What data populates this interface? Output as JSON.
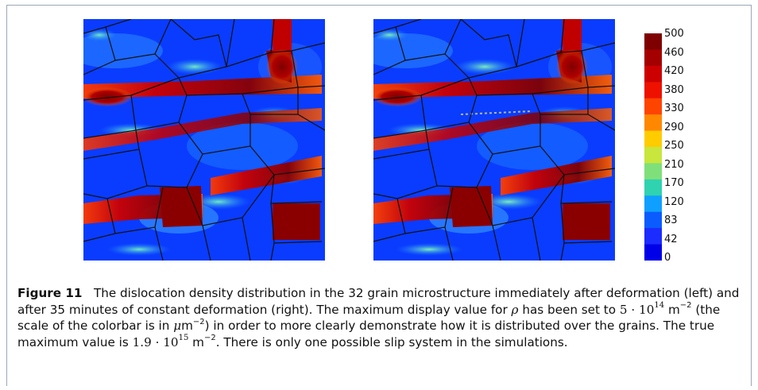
{
  "figure": {
    "colorbar": {
      "tick_labels": [
        "500",
        "460",
        "420",
        "380",
        "330",
        "290",
        "250",
        "210",
        "170",
        "120",
        "83",
        "42",
        "0"
      ],
      "colors_top_to_bottom": [
        "#7f0000",
        "#a50000",
        "#cc0000",
        "#ee1100",
        "#ff4400",
        "#ff8800",
        "#ffcc00",
        "#c8e63c",
        "#7fe07a",
        "#2fd3b0",
        "#0fa0ff",
        "#0a5cff",
        "#1a2cff",
        "#0000e8"
      ]
    },
    "panels": [
      {
        "id": "left",
        "state": "immediately after deformation"
      },
      {
        "id": "right",
        "state": "after 35 minutes of constant deformation"
      }
    ]
  },
  "caption": {
    "label": "Figure 11",
    "part1": "The dislocation density distribution in the 32 grain microstructure immediately after deformation (left) and after 35 minutes of constant deformation (right). The maximum display value for",
    "rho": "ρ",
    "part2": "has been set to",
    "max_display_base": "5 · 10",
    "max_display_exp": "14",
    "unit1": "m",
    "unit1_exp": "−2",
    "part3": "(the scale of the colorbar is in",
    "mu": "μ",
    "unit2": "m",
    "unit2_exp": "−2",
    "part4": ") in order to more clearly demonstrate how it is distributed over the grains. The true maximum value is",
    "true_max_base": "1.9 · 10",
    "true_max_exp": "15",
    "unit3": "m",
    "unit3_exp": "−2",
    "part5": ". There is only one possible slip system in the simulations."
  }
}
